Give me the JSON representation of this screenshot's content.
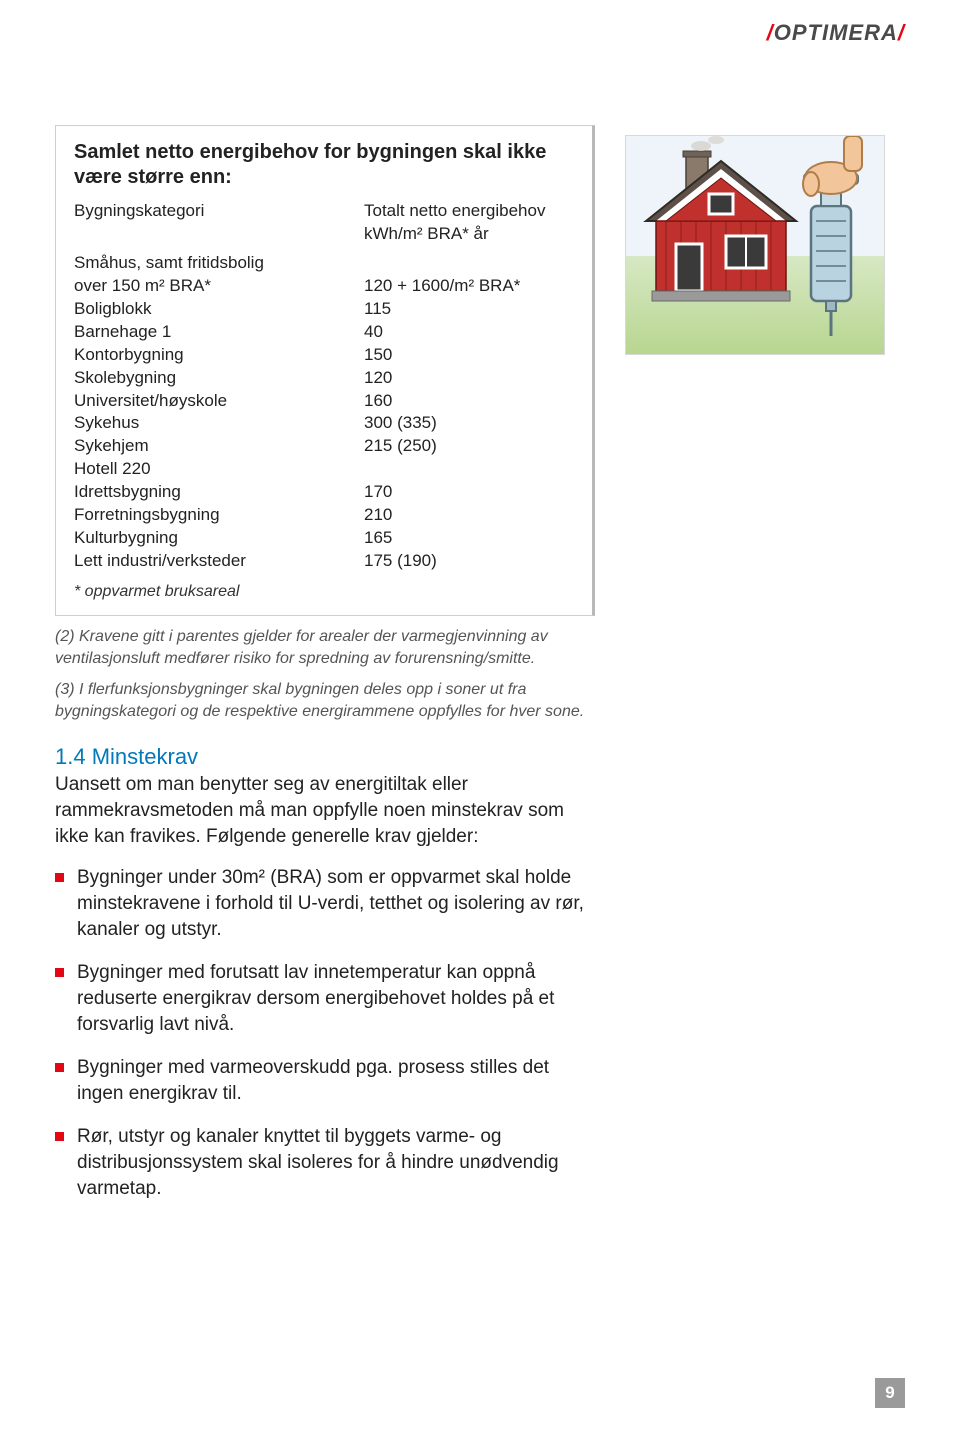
{
  "brand": {
    "slash": "/",
    "name": "OPTIMERA"
  },
  "table": {
    "title": "Samlet netto energibehov for bygningen skal ikke være større enn:",
    "header": {
      "col1": "Bygningskategori",
      "col2_l1": "Totalt netto energibehov",
      "col2_l2": "kWh/m² BRA* år"
    },
    "rows": [
      {
        "c1": "Småhus, samt fritidsbolig",
        "c2": ""
      },
      {
        "c1": "over 150 m² BRA*",
        "c2": "120 + 1600/m² BRA*"
      },
      {
        "c1": "Boligblokk",
        "c2": "115"
      },
      {
        "c1": "Barnehage 1",
        "c2": "40"
      },
      {
        "c1": "Kontorbygning",
        "c2": "150"
      },
      {
        "c1": "Skolebygning",
        "c2": "120"
      },
      {
        "c1": "Universitet/høyskole",
        "c2": "160"
      },
      {
        "c1": "Sykehus",
        "c2": "300 (335)"
      },
      {
        "c1": "Sykehjem",
        "c2": "215 (250)"
      },
      {
        "c1": "Hotell  220",
        "c2": ""
      },
      {
        "c1": "Idrettsbygning",
        "c2": "170"
      },
      {
        "c1": "Forretningsbygning",
        "c2": "210"
      },
      {
        "c1": "Kulturbygning",
        "c2": "165"
      },
      {
        "c1": "Lett industri/verksteder",
        "c2": "175 (190)"
      }
    ],
    "footnote": "* oppvarmet bruksareal"
  },
  "notes": {
    "n1": "(2) Kravene gitt i parentes gjelder for arealer der varmegjenvinning av ventilasjonsluft medfører risiko for spredning av forurensning/smitte.",
    "n2": "(3) I flerfunksjonsbygninger skal bygningen deles opp i soner ut fra bygningskategori og de respektive energirammene oppfylles for hver sone."
  },
  "section": {
    "heading": "1.4 Minstekrav",
    "heading_color": "#007ab8",
    "intro": "Uansett om man benytter seg av energitiltak eller rammekravsmetoden må man oppfylle noen minstekrav som ikke kan fravikes.  Følgende generelle krav gjelder:",
    "bullets": [
      "Bygninger under 30m² (BRA) som er oppvarmet skal holde minstekravene i forhold til U-verdi, tetthet og isolering av rør, kanaler og utstyr.",
      "Bygninger med forutsatt lav innetemperatur kan oppnå reduserte energikrav dersom energibehovet holdes på et forsvarlig lavt nivå.",
      "Bygninger med varmeoverskudd pga. prosess stilles det ingen energikrav til.",
      "Rør, utstyr og kanaler knyttet til byggets varme- og distribusjonssystem skal isoleres for å hindre unødvendig varmetap."
    ]
  },
  "illustration": {
    "sky": "#eef4f9",
    "grass_top": "#d7e8c4",
    "grass_bottom": "#b8d690",
    "wall": "#c0302c",
    "wall_stripe": "#d85a52",
    "roof": "#5c5048",
    "trim": "#ffffff",
    "chimney": "#8a7a6c",
    "syringe_body": "#b9d4e0",
    "syringe_outline": "#5a7580",
    "hand": "#f2c59a"
  },
  "page_number": "9"
}
